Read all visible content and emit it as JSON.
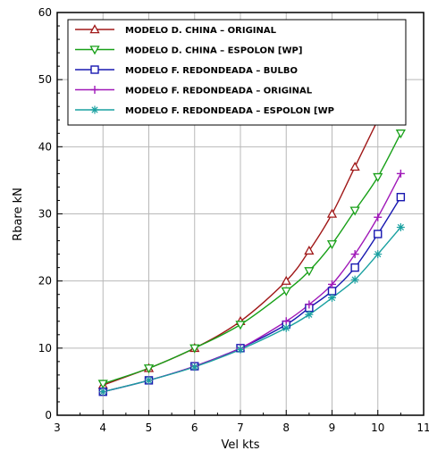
{
  "chart_data": {
    "type": "line",
    "xlabel": "Vel kts",
    "ylabel": "Rbare kN",
    "xlim": [
      3,
      11
    ],
    "ylim": [
      0,
      60
    ],
    "xticks": [
      3,
      4,
      5,
      6,
      7,
      8,
      9,
      10,
      11
    ],
    "yticks": [
      0,
      10,
      20,
      30,
      40,
      50,
      60
    ],
    "grid": true,
    "legend_position": "top",
    "series": [
      {
        "name": "MODELO D. CHINA – ORIGINAL",
        "color": "#a01818",
        "marker": "triangle-up",
        "x": [
          4,
          5,
          6,
          7,
          8,
          8.5,
          9,
          9.5,
          10
        ],
        "y": [
          4.5,
          7.0,
          10.0,
          14.0,
          20.0,
          24.5,
          30.0,
          37.0,
          44.0
        ]
      },
      {
        "name": "MODELO D. CHINA – ESPOLON [WP]",
        "color": "#18a018",
        "marker": "triangle-down",
        "x": [
          4,
          5,
          6,
          7,
          8,
          8.5,
          9,
          9.5,
          10,
          10.5
        ],
        "y": [
          4.7,
          7.0,
          10.0,
          13.5,
          18.5,
          21.5,
          25.5,
          30.5,
          35.5,
          42.0
        ]
      },
      {
        "name": "MODELO F. REDONDEADA – BULBO",
        "color": "#1818b0",
        "marker": "square",
        "x": [
          4,
          5,
          6,
          7,
          8,
          8.5,
          9,
          9.5,
          10,
          10.5
        ],
        "y": [
          3.5,
          5.2,
          7.3,
          10.0,
          13.5,
          16.0,
          18.5,
          22.0,
          27.0,
          32.5
        ]
      },
      {
        "name": "MODELO F. REDONDEADA – ORIGINAL",
        "color": "#a018b8",
        "marker": "plus",
        "x": [
          4,
          5,
          6,
          7,
          8,
          8.5,
          9,
          9.5,
          10,
          10.5
        ],
        "y": [
          3.5,
          5.2,
          7.3,
          10.0,
          14.0,
          16.5,
          19.5,
          24.0,
          29.5,
          36.0
        ]
      },
      {
        "name": "MODELO F. REDONDEADA – ESPOLON [WP",
        "color": "#18a0a0",
        "marker": "asterisk",
        "x": [
          4,
          5,
          6,
          7,
          8,
          8.5,
          9,
          9.5,
          10,
          10.5
        ],
        "y": [
          3.5,
          5.2,
          7.2,
          9.8,
          13.0,
          15.0,
          17.5,
          20.2,
          24.0,
          28.0
        ]
      }
    ]
  }
}
